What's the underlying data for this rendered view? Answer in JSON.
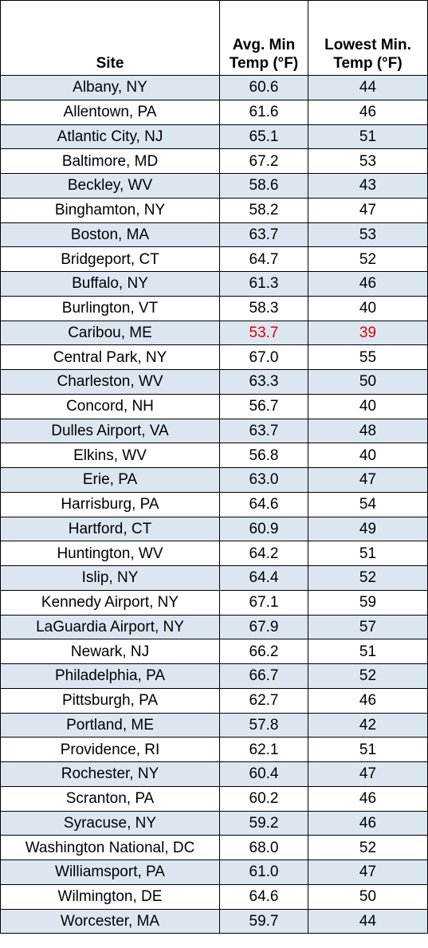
{
  "table": {
    "headers": {
      "site": "Site",
      "avg_line1": "Avg. Min",
      "avg_line2": "Temp (°F)",
      "lowest_line1": "Lowest Min.",
      "lowest_line2": "Temp (°F)"
    },
    "highlight_color": "#e00000",
    "alt_row_color": "#dce6f1",
    "rows": [
      {
        "site": "Albany, NY",
        "avg": "60.6",
        "lowest": "44"
      },
      {
        "site": "Allentown, PA",
        "avg": "61.6",
        "lowest": "46"
      },
      {
        "site": "Atlantic City, NJ",
        "avg": "65.1",
        "lowest": "51"
      },
      {
        "site": "Baltimore, MD",
        "avg": "67.2",
        "lowest": "53"
      },
      {
        "site": "Beckley, WV",
        "avg": "58.6",
        "lowest": "43"
      },
      {
        "site": "Binghamton, NY",
        "avg": "58.2",
        "lowest": "47"
      },
      {
        "site": "Boston, MA",
        "avg": "63.7",
        "lowest": "53"
      },
      {
        "site": "Bridgeport, CT",
        "avg": "64.7",
        "lowest": "52"
      },
      {
        "site": "Buffalo, NY",
        "avg": "61.3",
        "lowest": "46"
      },
      {
        "site": "Burlington, VT",
        "avg": "58.3",
        "lowest": "40"
      },
      {
        "site": "Caribou, ME",
        "avg": "53.7",
        "lowest": "39",
        "highlight": true
      },
      {
        "site": "Central Park, NY",
        "avg": "67.0",
        "lowest": "55"
      },
      {
        "site": "Charleston, WV",
        "avg": "63.3",
        "lowest": "50"
      },
      {
        "site": "Concord, NH",
        "avg": "56.7",
        "lowest": "40"
      },
      {
        "site": "Dulles Airport, VA",
        "avg": "63.7",
        "lowest": "48"
      },
      {
        "site": "Elkins, WV",
        "avg": "56.8",
        "lowest": "40"
      },
      {
        "site": "Erie, PA",
        "avg": "63.0",
        "lowest": "47"
      },
      {
        "site": "Harrisburg, PA",
        "avg": "64.6",
        "lowest": "54"
      },
      {
        "site": "Hartford, CT",
        "avg": "60.9",
        "lowest": "49"
      },
      {
        "site": "Huntington, WV",
        "avg": "64.2",
        "lowest": "51"
      },
      {
        "site": "Islip, NY",
        "avg": "64.4",
        "lowest": "52"
      },
      {
        "site": "Kennedy Airport, NY",
        "avg": "67.1",
        "lowest": "59"
      },
      {
        "site": "LaGuardia Airport, NY",
        "avg": "67.9",
        "lowest": "57"
      },
      {
        "site": "Newark, NJ",
        "avg": "66.2",
        "lowest": "51"
      },
      {
        "site": "Philadelphia, PA",
        "avg": "66.7",
        "lowest": "52"
      },
      {
        "site": "Pittsburgh, PA",
        "avg": "62.7",
        "lowest": "46"
      },
      {
        "site": "Portland, ME",
        "avg": "57.8",
        "lowest": "42"
      },
      {
        "site": "Providence, RI",
        "avg": "62.1",
        "lowest": "51"
      },
      {
        "site": "Rochester, NY",
        "avg": "60.4",
        "lowest": "47"
      },
      {
        "site": "Scranton, PA",
        "avg": "60.2",
        "lowest": "46"
      },
      {
        "site": "Syracuse, NY",
        "avg": "59.2",
        "lowest": "46"
      },
      {
        "site": "Washington National, DC",
        "avg": "68.0",
        "lowest": "52"
      },
      {
        "site": "Williamsport, PA",
        "avg": "61.0",
        "lowest": "47"
      },
      {
        "site": "Wilmington, DE",
        "avg": "64.6",
        "lowest": "50"
      },
      {
        "site": "Worcester, MA",
        "avg": "59.7",
        "lowest": "44"
      }
    ]
  }
}
